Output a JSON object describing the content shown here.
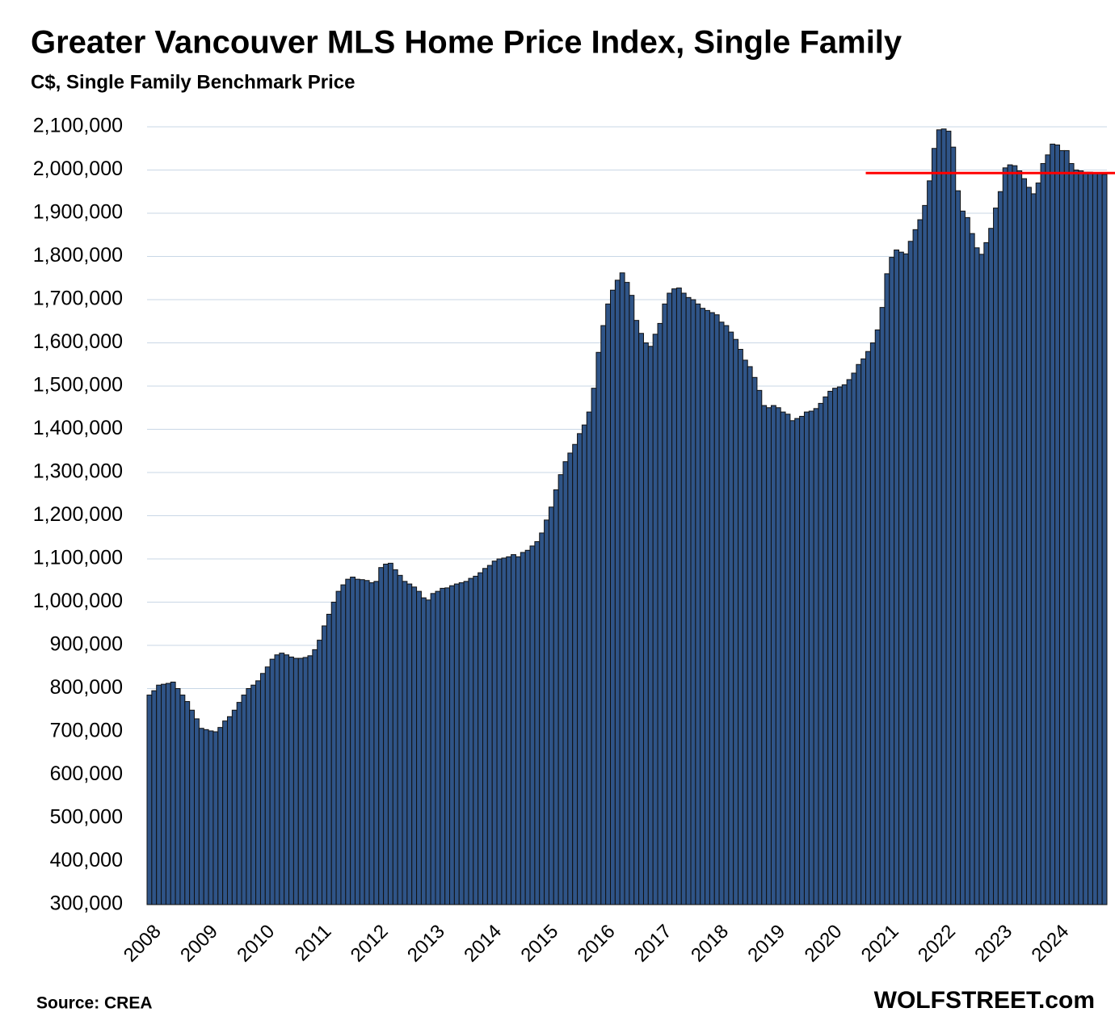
{
  "chart_data": {
    "type": "bar",
    "title": "Greater Vancouver MLS Home Price Index, Single Family",
    "subtitle": "C$, Single Family Benchmark Price",
    "source": "Source: CREA",
    "brand": "WOLFSTREET.com",
    "color": "#2f5487",
    "grid": true,
    "hline": {
      "value": 1993000,
      "color": "#ff0000"
    },
    "ylim": [
      300000,
      2100000
    ],
    "yticks": [
      {
        "value": 300000,
        "label": "300,000"
      },
      {
        "value": 400000,
        "label": "400,000"
      },
      {
        "value": 500000,
        "label": "500,000"
      },
      {
        "value": 600000,
        "label": "600,000"
      },
      {
        "value": 700000,
        "label": "700,000"
      },
      {
        "value": 800000,
        "label": "800,000"
      },
      {
        "value": 900000,
        "label": "900,000"
      },
      {
        "value": 1000000,
        "label": "1,000,000"
      },
      {
        "value": 1100000,
        "label": "1,100,000"
      },
      {
        "value": 1200000,
        "label": "1,200,000"
      },
      {
        "value": 1300000,
        "label": "1,300,000"
      },
      {
        "value": 1400000,
        "label": "1,400,000"
      },
      {
        "value": 1500000,
        "label": "1,500,000"
      },
      {
        "value": 1600000,
        "label": "1,600,000"
      },
      {
        "value": 1700000,
        "label": "1,700,000"
      },
      {
        "value": 1800000,
        "label": "1,800,000"
      },
      {
        "value": 1900000,
        "label": "1,900,000"
      },
      {
        "value": 2000000,
        "label": "2,000,000"
      },
      {
        "value": 2100000,
        "label": "2,100,000"
      }
    ],
    "categories": [
      "2008",
      null,
      null,
      null,
      null,
      null,
      null,
      null,
      null,
      null,
      null,
      null,
      "2009",
      null,
      null,
      null,
      null,
      null,
      null,
      null,
      null,
      null,
      null,
      null,
      "2010",
      null,
      null,
      null,
      null,
      null,
      null,
      null,
      null,
      null,
      null,
      null,
      "2011",
      null,
      null,
      null,
      null,
      null,
      null,
      null,
      null,
      null,
      null,
      null,
      "2012",
      null,
      null,
      null,
      null,
      null,
      null,
      null,
      null,
      null,
      null,
      null,
      "2013",
      null,
      null,
      null,
      null,
      null,
      null,
      null,
      null,
      null,
      null,
      null,
      "2014",
      null,
      null,
      null,
      null,
      null,
      null,
      null,
      null,
      null,
      null,
      null,
      "2015",
      null,
      null,
      null,
      null,
      null,
      null,
      null,
      null,
      null,
      null,
      null,
      "2016",
      null,
      null,
      null,
      null,
      null,
      null,
      null,
      null,
      null,
      null,
      null,
      "2017",
      null,
      null,
      null,
      null,
      null,
      null,
      null,
      null,
      null,
      null,
      null,
      "2018",
      null,
      null,
      null,
      null,
      null,
      null,
      null,
      null,
      null,
      null,
      null,
      "2019",
      null,
      null,
      null,
      null,
      null,
      null,
      null,
      null,
      null,
      null,
      null,
      "2020",
      null,
      null,
      null,
      null,
      null,
      null,
      null,
      null,
      null,
      null,
      null,
      "2021",
      null,
      null,
      null,
      null,
      null,
      null,
      null,
      null,
      null,
      null,
      null,
      "2022",
      null,
      null,
      null,
      null,
      null,
      null,
      null,
      null,
      null,
      null,
      null,
      "2023",
      null,
      null,
      null,
      null,
      null,
      null,
      null,
      null,
      null,
      null,
      null,
      "2024",
      null,
      null,
      null,
      null,
      null,
      null,
      null,
      null,
      null,
      null
    ],
    "values": [
      785000,
      795000,
      808000,
      810000,
      812000,
      815000,
      800000,
      785000,
      770000,
      750000,
      730000,
      708000,
      705000,
      702000,
      700000,
      710000,
      725000,
      735000,
      750000,
      768000,
      785000,
      800000,
      808000,
      818000,
      835000,
      850000,
      868000,
      878000,
      882000,
      878000,
      873000,
      870000,
      870000,
      872000,
      876000,
      890000,
      912000,
      945000,
      972000,
      1000000,
      1025000,
      1040000,
      1053000,
      1058000,
      1053000,
      1052000,
      1050000,
      1045000,
      1048000,
      1080000,
      1088000,
      1090000,
      1075000,
      1062000,
      1048000,
      1042000,
      1035000,
      1025000,
      1010000,
      1005000,
      1020000,
      1025000,
      1032000,
      1033000,
      1038000,
      1042000,
      1045000,
      1048000,
      1055000,
      1060000,
      1068000,
      1078000,
      1085000,
      1095000,
      1100000,
      1102000,
      1105000,
      1110000,
      1105000,
      1115000,
      1120000,
      1130000,
      1140000,
      1160000,
      1190000,
      1220000,
      1260000,
      1295000,
      1325000,
      1345000,
      1365000,
      1390000,
      1410000,
      1440000,
      1495000,
      1578000,
      1640000,
      1690000,
      1722000,
      1745000,
      1762000,
      1740000,
      1710000,
      1652000,
      1622000,
      1600000,
      1592000,
      1620000,
      1645000,
      1690000,
      1715000,
      1725000,
      1727000,
      1715000,
      1705000,
      1700000,
      1690000,
      1680000,
      1675000,
      1670000,
      1665000,
      1648000,
      1640000,
      1625000,
      1608000,
      1585000,
      1560000,
      1545000,
      1520000,
      1490000,
      1455000,
      1450000,
      1455000,
      1450000,
      1440000,
      1435000,
      1420000,
      1425000,
      1430000,
      1440000,
      1442000,
      1448000,
      1460000,
      1475000,
      1488000,
      1495000,
      1498000,
      1503000,
      1515000,
      1530000,
      1550000,
      1563000,
      1580000,
      1600000,
      1630000,
      1682000,
      1760000,
      1798000,
      1815000,
      1810000,
      1806000,
      1835000,
      1862000,
      1885000,
      1918000,
      1975000,
      2050000,
      2093000,
      2095000,
      2090000,
      2053000,
      1952000,
      1905000,
      1890000,
      1853000,
      1820000,
      1805000,
      1832000,
      1865000,
      1912000,
      1950000,
      2005000,
      2012000,
      2010000,
      1998000,
      1980000,
      1960000,
      1945000,
      1970000,
      2015000,
      2035000,
      2060000,
      2058000,
      2045000,
      2045000,
      2015000,
      2000000,
      1998000,
      1995000,
      1995000,
      1993000,
      1992000,
      1990000
    ]
  }
}
